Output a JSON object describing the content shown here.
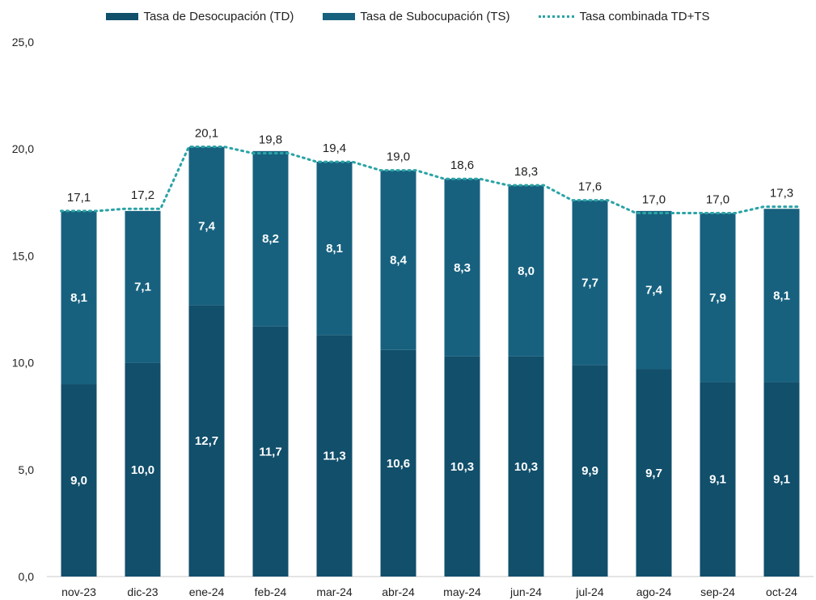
{
  "colors": {
    "td": "#114f6b",
    "ts": "#17617f",
    "combined": "#2aa3a6",
    "axis": "#c9c9c9"
  },
  "chart_data": {
    "type": "bar",
    "stacked": true,
    "categories": [
      "nov-23",
      "dic-23",
      "ene-24",
      "feb-24",
      "mar-24",
      "abr-24",
      "may-24",
      "jun-24",
      "jul-24",
      "ago-24",
      "sep-24",
      "oct-24"
    ],
    "series": [
      {
        "name": "Tasa de Desocupación (TD)",
        "values": [
          9.0,
          10.0,
          12.7,
          11.7,
          11.3,
          10.6,
          10.3,
          10.3,
          9.9,
          9.7,
          9.1,
          9.1
        ],
        "labels": [
          "9,0",
          "10,0",
          "12,7",
          "11,7",
          "11,3",
          "10,6",
          "10,3",
          "10,3",
          "9,9",
          "9,7",
          "9,1",
          "9,1"
        ]
      },
      {
        "name": "Tasa de Subocupación (TS)",
        "values": [
          8.1,
          7.1,
          7.4,
          8.2,
          8.1,
          8.4,
          8.3,
          8.0,
          7.7,
          7.4,
          7.9,
          8.1
        ],
        "labels": [
          "8,1",
          "7,1",
          "7,4",
          "8,2",
          "8,1",
          "8,4",
          "8,3",
          "8,0",
          "7,7",
          "7,4",
          "7,9",
          "8,1"
        ]
      }
    ],
    "line": {
      "name": "Tasa combinada TD+TS",
      "values": [
        17.1,
        17.2,
        20.1,
        19.8,
        19.4,
        19.0,
        18.6,
        18.3,
        17.6,
        17.0,
        17.0,
        17.3
      ],
      "labels": [
        "17,1",
        "17,2",
        "20,1",
        "19,8",
        "19,4",
        "19,0",
        "18,6",
        "18,3",
        "17,6",
        "17,0",
        "17,0",
        "17,3"
      ],
      "style": "dotted"
    },
    "ylim": [
      0,
      25
    ],
    "yticks": [
      0,
      5,
      10,
      15,
      20,
      25
    ],
    "ytick_labels": [
      "0,0",
      "5,0",
      "10,0",
      "15,0",
      "20,0",
      "25,0"
    ],
    "grid": false,
    "legend_position": "top",
    "xlabel": "",
    "ylabel": ""
  }
}
